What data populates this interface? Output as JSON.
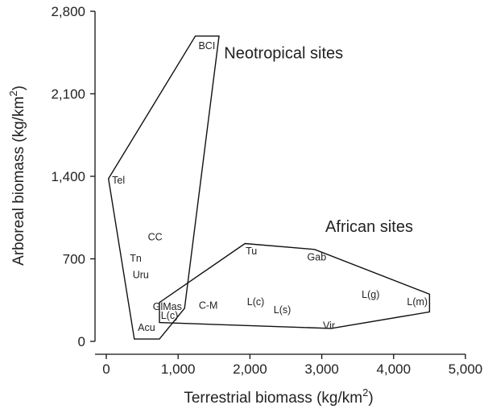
{
  "chart_data": {
    "type": "scatter",
    "title": "",
    "xlabel": "Terrestrial biomass (kg/km",
    "xlabel_sup": "2",
    "xlabel_end": ")",
    "ylabel": "Arboreal biomass (kg/km",
    "ylabel_sup": "2",
    "ylabel_end": ")",
    "xlim": [
      0,
      5000
    ],
    "ylim": [
      0,
      2800
    ],
    "xticks": [
      0,
      1000,
      2000,
      3000,
      4000,
      5000
    ],
    "xtick_labels": [
      "0",
      "1,000",
      "2,000",
      "3,000",
      "4,000",
      "5,000"
    ],
    "yticks": [
      0,
      700,
      1400,
      2100,
      2800
    ],
    "ytick_labels": [
      "0",
      "700",
      "1,400",
      "2,100",
      "2,800"
    ],
    "grid": false,
    "groups": [
      {
        "name": "Neotropical sites",
        "hull": [
          [
            1240,
            2590
          ],
          [
            1570,
            2590
          ],
          [
            1090,
            280
          ],
          [
            740,
            20
          ],
          [
            390,
            20
          ],
          [
            30,
            1380
          ]
        ],
        "points": [
          {
            "label": "BCI",
            "x": 1400,
            "y": 2500
          },
          {
            "label": "Tel",
            "x": 170,
            "y": 1360
          },
          {
            "label": "CC",
            "x": 680,
            "y": 880
          },
          {
            "label": "Tn",
            "x": 410,
            "y": 700
          },
          {
            "label": "Uru",
            "x": 480,
            "y": 560
          },
          {
            "label": "GlMas",
            "x": 850,
            "y": 290
          },
          {
            "label": "L(c)",
            "x": 880,
            "y": 215
          },
          {
            "label": "Acu",
            "x": 560,
            "y": 110
          }
        ]
      },
      {
        "name": "African sites",
        "hull": [
          [
            1930,
            830
          ],
          [
            2900,
            780
          ],
          [
            4500,
            400
          ],
          [
            4500,
            250
          ],
          [
            3130,
            110
          ],
          [
            740,
            160
          ],
          [
            740,
            330
          ]
        ],
        "points": [
          {
            "label": "Tu",
            "x": 2020,
            "y": 760
          },
          {
            "label": "Gab",
            "x": 2930,
            "y": 710
          },
          {
            "label": "C-M",
            "x": 1420,
            "y": 300
          },
          {
            "label": "L(c)",
            "x": 2080,
            "y": 330
          },
          {
            "label": "L(s)",
            "x": 2450,
            "y": 260
          },
          {
            "label": "L(g)",
            "x": 3680,
            "y": 390
          },
          {
            "label": "L(m)",
            "x": 4330,
            "y": 330
          },
          {
            "label": "Vir",
            "x": 3100,
            "y": 130
          }
        ]
      }
    ],
    "annotations": [
      {
        "text": "Neotropical sites",
        "x": 1640,
        "y": 2400,
        "group": 0
      },
      {
        "text": "African sites",
        "x": 3050,
        "y": 930,
        "group": 1
      }
    ]
  }
}
